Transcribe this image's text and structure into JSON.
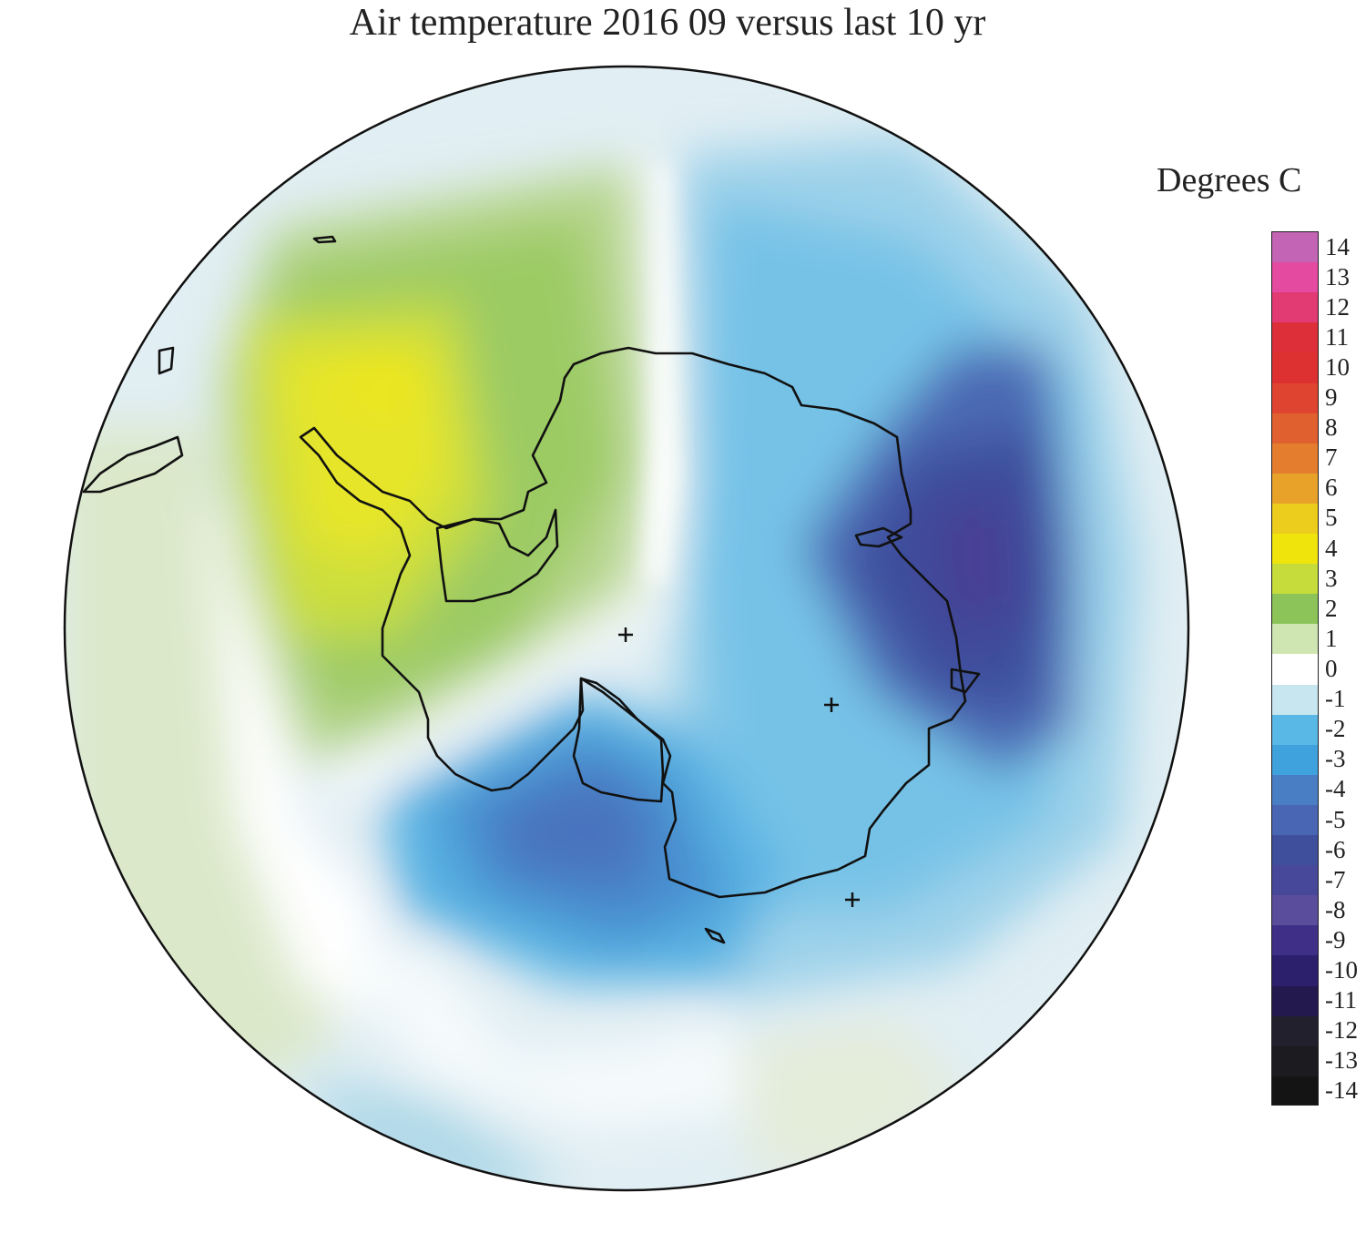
{
  "title": "Air temperature 2016 09 versus last 10 yr",
  "legend": {
    "title": "Degrees C",
    "ticks": [
      "14",
      "13",
      "12",
      "11",
      "10",
      "9",
      "8",
      "7",
      "6",
      "5",
      "4",
      "3",
      "2",
      "1",
      "0",
      "-1",
      "-2",
      "-3",
      "-4",
      "-5",
      "-6",
      "-7",
      "-8",
      "-9",
      "-10",
      "-11",
      "-12",
      "-13",
      "-14"
    ],
    "colors": {
      "14": "#c464b4",
      "13": "#e34aa0",
      "12": "#e23a72",
      "11": "#dd2f3a",
      "10": "#dc3130",
      "9": "#df4430",
      "8": "#e0602f",
      "7": "#e47e2e",
      "6": "#e8a22a",
      "5": "#eccc1c",
      "4": "#f0e40d",
      "3": "#c6dc3a",
      "2": "#8cc45a",
      "1": "#cfe6b2",
      "0": "#ffffff",
      "-1": "#c8e6f0",
      "-2": "#5ab8e6",
      "-3": "#3fa2dd",
      "-4": "#4a7ec4",
      "-5": "#4966b4",
      "-6": "#3f4f9c",
      "-7": "#47489a",
      "-8": "#5a4e9c",
      "-9": "#3f2f86",
      "-10": "#2c1f6c",
      "-11": "#24194f",
      "-12": "#22202c",
      "-13": "#1c1c20",
      "-14": "#141414"
    }
  }
}
